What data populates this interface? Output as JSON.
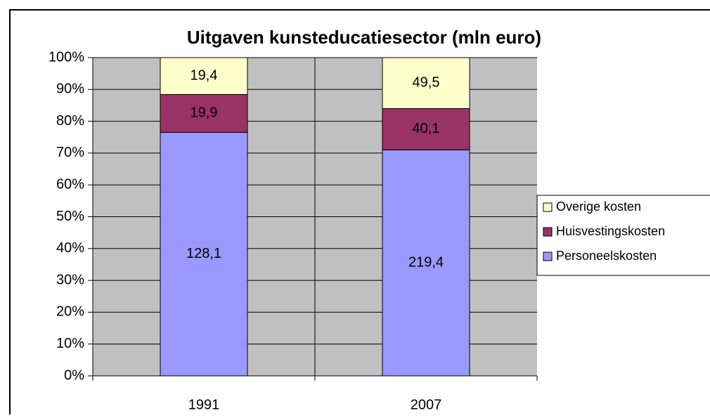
{
  "chart_data": {
    "type": "bar",
    "stacking": "percent",
    "title": "Uitgaven kunsteducatiesector (mln euro)",
    "categories": [
      "1991",
      "2007"
    ],
    "series": [
      {
        "name": "Personeelskosten",
        "color": "#9999ff",
        "values": [
          128.1,
          219.4
        ],
        "value_labels": [
          "128,1",
          "219,4"
        ]
      },
      {
        "name": "Huisvestingskosten",
        "color": "#993366",
        "values": [
          19.9,
          40.1
        ],
        "value_labels": [
          "19,9",
          "40,1"
        ]
      },
      {
        "name": "Overige kosten",
        "color": "#ffffcc",
        "values": [
          19.4,
          49.5
        ],
        "value_labels": [
          "19,4",
          "49,5"
        ]
      }
    ],
    "ylim": [
      0,
      100
    ],
    "yticks": [
      {
        "value": 0,
        "label": "0%"
      },
      {
        "value": 10,
        "label": "10%"
      },
      {
        "value": 20,
        "label": "20%"
      },
      {
        "value": 30,
        "label": "30%"
      },
      {
        "value": 40,
        "label": "40%"
      },
      {
        "value": 50,
        "label": "50%"
      },
      {
        "value": 60,
        "label": "60%"
      },
      {
        "value": 70,
        "label": "70%"
      },
      {
        "value": 80,
        "label": "80%"
      },
      {
        "value": 90,
        "label": "90%"
      },
      {
        "value": 100,
        "label": "100%"
      }
    ],
    "grid": true,
    "legend": "right",
    "plot_background": "#c0c0c0"
  }
}
